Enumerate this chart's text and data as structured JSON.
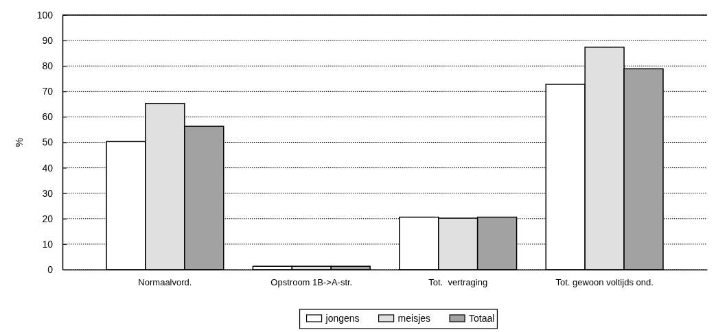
{
  "chart_data": {
    "type": "bar",
    "ylabel": "%",
    "categories": [
      "Normaalvord.",
      "Opstroom 1B->A-str.",
      "Tot.  vertraging",
      "Tot. gewoon voltijds ond."
    ],
    "series": [
      {
        "name": "jongens",
        "color": "#ffffff",
        "values": [
          50.3,
          1.3,
          20.6,
          72.8
        ]
      },
      {
        "name": "meisjes",
        "color": "#e0e0e0",
        "values": [
          65.3,
          1.3,
          20.2,
          87.4
        ]
      },
      {
        "name": "Totaal",
        "color": "#a2a2a2",
        "values": [
          56.3,
          1.3,
          20.6,
          78.9
        ]
      }
    ],
    "ylim": [
      0,
      100
    ],
    "yticks": [
      0,
      10,
      20,
      30,
      40,
      50,
      60,
      70,
      80,
      90,
      100
    ],
    "grid": "y",
    "legend": "bottom"
  }
}
